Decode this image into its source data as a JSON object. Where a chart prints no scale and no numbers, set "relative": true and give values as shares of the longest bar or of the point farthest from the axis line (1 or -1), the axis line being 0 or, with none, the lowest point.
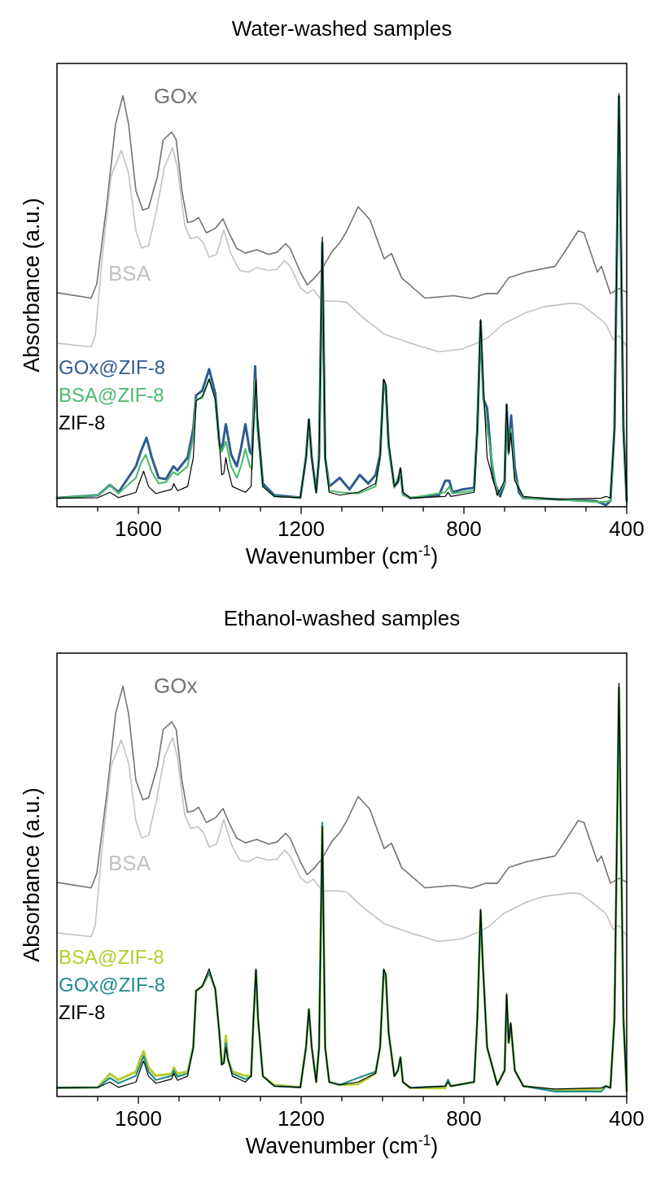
{
  "chart_data": [
    {
      "type": "line",
      "title": "Water-washed samples",
      "xlabel": "Wavenumber (cm$^{-1}$)",
      "ylabel": "Absorbance (a.u.)",
      "relative": true,
      "xlim": [
        1800,
        400
      ],
      "xticks": [
        {
          "value": 1700,
          "label": null
        },
        1600,
        {
          "value": 1500,
          "label": null
        },
        {
          "value": 1400,
          "label": null
        },
        {
          "value": 1300,
          "label": null
        },
        1200,
        {
          "value": 1100,
          "label": null
        },
        {
          "value": 1000,
          "label": null
        },
        {
          "value": 900,
          "label": null
        },
        800,
        {
          "value": 700,
          "label": null
        },
        {
          "value": 600,
          "label": null
        },
        {
          "value": 500,
          "label": null
        },
        400
      ],
      "tick_labels": "x",
      "series": [
        {
          "name": "GOx",
          "color": "#737373",
          "x": [
            1800,
            1716,
            1702,
            1677,
            1656,
            1638,
            1624,
            1606,
            1589,
            1575,
            1553,
            1539,
            1518,
            1507,
            1493,
            1479,
            1465,
            1452,
            1433,
            1411,
            1392,
            1376,
            1358,
            1337,
            1309,
            1280,
            1259,
            1238,
            1227,
            1202,
            1185,
            1167,
            1149,
            1124,
            1105,
            1088,
            1060,
            1031,
            996,
            978,
            953,
            896,
            825,
            782,
            747,
            718,
            690,
            647,
            576,
            547,
            519,
            505,
            472,
            462,
            440,
            419,
            400
          ],
          "values": [
            0.518,
            0.505,
            0.54,
            0.737,
            0.926,
            0.995,
            0.926,
            0.765,
            0.718,
            0.723,
            0.8,
            0.888,
            0.907,
            0.888,
            0.765,
            0.688,
            0.691,
            0.7,
            0.663,
            0.674,
            0.697,
            0.66,
            0.625,
            0.614,
            0.622,
            0.611,
            0.616,
            0.637,
            0.625,
            0.568,
            0.537,
            0.554,
            0.575,
            0.618,
            0.639,
            0.667,
            0.726,
            0.695,
            0.6,
            0.613,
            0.554,
            0.505,
            0.511,
            0.504,
            0.516,
            0.516,
            0.554,
            0.568,
            0.582,
            0.625,
            0.668,
            0.663,
            0.568,
            0.582,
            0.516,
            0.528,
            0.519
          ]
        },
        {
          "name": "BSA",
          "color": "#c2c2c2",
          "x": [
            1800,
            1716,
            1706,
            1688,
            1667,
            1642,
            1624,
            1606,
            1592,
            1575,
            1557,
            1536,
            1516,
            1504,
            1486,
            1472,
            1454,
            1440,
            1426,
            1408,
            1390,
            1372,
            1351,
            1330,
            1309,
            1280,
            1259,
            1241,
            1227,
            1202,
            1185,
            1170,
            1149,
            1105,
            1088,
            1046,
            996,
            932,
            861,
            804,
            768,
            739,
            704,
            647,
            604,
            533,
            512,
            476,
            451,
            433,
            419,
            400
          ],
          "values": [
            0.396,
            0.387,
            0.414,
            0.611,
            0.8,
            0.863,
            0.807,
            0.667,
            0.626,
            0.632,
            0.709,
            0.821,
            0.869,
            0.821,
            0.681,
            0.649,
            0.653,
            0.639,
            0.604,
            0.611,
            0.67,
            0.611,
            0.572,
            0.568,
            0.579,
            0.572,
            0.575,
            0.596,
            0.582,
            0.53,
            0.516,
            0.526,
            0.498,
            0.497,
            0.495,
            0.456,
            0.418,
            0.396,
            0.375,
            0.382,
            0.396,
            0.411,
            0.442,
            0.47,
            0.484,
            0.493,
            0.49,
            0.463,
            0.442,
            0.404,
            0.414,
            0.389
          ]
        },
        {
          "name": "GOx@ZIF-8",
          "color": "#2f5b8e",
          "x": [
            1800,
            1699,
            1670,
            1649,
            1606,
            1594,
            1580,
            1567,
            1550,
            1532,
            1514,
            1504,
            1479,
            1465,
            1458,
            1443,
            1426,
            1411,
            1401,
            1395,
            1385,
            1372,
            1358,
            1348,
            1337,
            1326,
            1321,
            1317,
            1313,
            1309,
            1294,
            1266,
            1202,
            1188,
            1181,
            1174,
            1163,
            1156,
            1148,
            1141,
            1131,
            1105,
            1081,
            1056,
            1035,
            1017,
            1006,
            997,
            992,
            985,
            971,
            962,
            956,
            950,
            932,
            861,
            846,
            836,
            828,
            804,
            775,
            767,
            759,
            752,
            743,
            729,
            711,
            700,
            695,
            690,
            684,
            675,
            665,
            654,
            576,
            476,
            451,
            440,
            430,
            419,
            408,
            400
          ],
          "values": [
            0.021,
            0.028,
            0.053,
            0.035,
            0.098,
            0.133,
            0.167,
            0.119,
            0.07,
            0.067,
            0.098,
            0.088,
            0.119,
            0.189,
            0.27,
            0.281,
            0.333,
            0.274,
            0.154,
            0.137,
            0.2,
            0.126,
            0.098,
            0.14,
            0.2,
            0.133,
            0.126,
            0.225,
            0.34,
            0.225,
            0.056,
            0.028,
            0.022,
            0.119,
            0.211,
            0.119,
            0.035,
            0.119,
            0.639,
            0.119,
            0.049,
            0.07,
            0.042,
            0.077,
            0.056,
            0.077,
            0.126,
            0.305,
            0.291,
            0.147,
            0.049,
            0.06,
            0.091,
            0.032,
            0.021,
            0.028,
            0.063,
            0.063,
            0.035,
            0.042,
            0.046,
            0.189,
            0.449,
            0.26,
            0.239,
            0.07,
            0.025,
            0.056,
            0.246,
            0.133,
            0.221,
            0.095,
            0.035,
            0.021,
            0.018,
            0.014,
            0.004,
            0.014,
            0.189,
            0.993,
            0.189,
            0.014
          ]
        },
        {
          "name": "BSA@ZIF-8",
          "color": "#4dbb6d",
          "x": [
            1800,
            1699,
            1670,
            1649,
            1606,
            1594,
            1582,
            1567,
            1550,
            1532,
            1514,
            1504,
            1479,
            1465,
            1458,
            1443,
            1426,
            1411,
            1401,
            1395,
            1385,
            1372,
            1358,
            1348,
            1337,
            1326,
            1321,
            1317,
            1313,
            1309,
            1294,
            1266,
            1202,
            1188,
            1181,
            1174,
            1163,
            1156,
            1148,
            1141,
            1131,
            1105,
            1060,
            1017,
            1006,
            997,
            992,
            985,
            971,
            956,
            950,
            932,
            846,
            836,
            828,
            775,
            767,
            759,
            752,
            743,
            718,
            700,
            695,
            690,
            684,
            675,
            654,
            576,
            462,
            440,
            430,
            419,
            408,
            400
          ],
          "values": [
            0.021,
            0.028,
            0.053,
            0.032,
            0.07,
            0.105,
            0.126,
            0.084,
            0.056,
            0.06,
            0.084,
            0.077,
            0.098,
            0.168,
            0.26,
            0.263,
            0.309,
            0.26,
            0.147,
            0.133,
            0.158,
            0.098,
            0.07,
            0.098,
            0.14,
            0.098,
            0.091,
            0.204,
            0.309,
            0.204,
            0.049,
            0.025,
            0.022,
            0.119,
            0.204,
            0.119,
            0.035,
            0.119,
            0.639,
            0.119,
            0.039,
            0.035,
            0.032,
            0.049,
            0.119,
            0.302,
            0.288,
            0.147,
            0.046,
            0.088,
            0.028,
            0.021,
            0.035,
            0.049,
            0.032,
            0.039,
            0.189,
            0.442,
            0.26,
            0.189,
            0.028,
            0.056,
            0.239,
            0.126,
            0.189,
            0.07,
            0.021,
            0.018,
            0.011,
            0.014,
            0.189,
            0.989,
            0.189,
            0.014
          ]
        },
        {
          "name": "ZIF-8",
          "color": "#000000",
          "x": [
            1800,
            1699,
            1670,
            1649,
            1606,
            1596,
            1587,
            1575,
            1557,
            1518,
            1513,
            1504,
            1479,
            1465,
            1458,
            1443,
            1426,
            1411,
            1401,
            1395,
            1390,
            1385,
            1380,
            1369,
            1337,
            1323,
            1317,
            1311,
            1306,
            1294,
            1266,
            1202,
            1188,
            1181,
            1174,
            1163,
            1156,
            1148,
            1141,
            1131,
            1105,
            1060,
            1017,
            1006,
            997,
            992,
            985,
            971,
            962,
            956,
            950,
            932,
            846,
            839,
            832,
            775,
            767,
            759,
            754,
            743,
            718,
            700,
            695,
            690,
            685,
            675,
            654,
            576,
            462,
            451,
            440,
            430,
            419,
            408,
            400
          ],
          "values": [
            0.021,
            0.022,
            0.035,
            0.022,
            0.035,
            0.063,
            0.086,
            0.049,
            0.032,
            0.042,
            0.056,
            0.039,
            0.049,
            0.119,
            0.256,
            0.267,
            0.309,
            0.26,
            0.154,
            0.077,
            0.081,
            0.119,
            0.091,
            0.049,
            0.035,
            0.049,
            0.189,
            0.309,
            0.189,
            0.049,
            0.025,
            0.022,
            0.119,
            0.211,
            0.119,
            0.035,
            0.119,
            0.653,
            0.119,
            0.035,
            0.028,
            0.035,
            0.056,
            0.119,
            0.309,
            0.295,
            0.154,
            0.049,
            0.063,
            0.095,
            0.035,
            0.021,
            0.025,
            0.035,
            0.025,
            0.035,
            0.189,
            0.453,
            0.33,
            0.119,
            0.028,
            0.063,
            0.249,
            0.13,
            0.179,
            0.063,
            0.025,
            0.018,
            0.021,
            0.025,
            0.021,
            0.189,
            1.0,
            0.189,
            0.014
          ]
        }
      ]
    },
    {
      "type": "line",
      "title": "Ethanol-washed samples",
      "xlabel": "Wavenumber (cm$^{-1}$)",
      "ylabel": "Absorbance (a.u.)",
      "relative": true,
      "xlim": [
        1800,
        400
      ],
      "xticks": [
        {
          "value": 1700,
          "label": null
        },
        1600,
        {
          "value": 1500,
          "label": null
        },
        {
          "value": 1400,
          "label": null
        },
        {
          "value": 1300,
          "label": null
        },
        1200,
        {
          "value": 1100,
          "label": null
        },
        {
          "value": 1000,
          "label": null
        },
        {
          "value": 900,
          "label": null
        },
        800,
        {
          "value": 700,
          "label": null
        },
        {
          "value": 600,
          "label": null
        },
        {
          "value": 500,
          "label": null
        },
        400
      ],
      "tick_labels": "x",
      "series": [
        {
          "name": "GOx",
          "color": "#737373",
          "x": [
            1800,
            1716,
            1702,
            1677,
            1656,
            1638,
            1624,
            1606,
            1589,
            1575,
            1553,
            1539,
            1518,
            1507,
            1493,
            1479,
            1465,
            1452,
            1433,
            1411,
            1392,
            1376,
            1358,
            1337,
            1309,
            1280,
            1259,
            1238,
            1227,
            1202,
            1185,
            1167,
            1149,
            1124,
            1105,
            1088,
            1060,
            1031,
            996,
            978,
            953,
            896,
            825,
            782,
            747,
            718,
            690,
            647,
            576,
            547,
            519,
            505,
            472,
            462,
            440,
            419,
            400
          ],
          "values": [
            0.518,
            0.505,
            0.54,
            0.737,
            0.926,
            0.993,
            0.926,
            0.765,
            0.718,
            0.723,
            0.8,
            0.888,
            0.907,
            0.888,
            0.765,
            0.688,
            0.691,
            0.7,
            0.663,
            0.674,
            0.697,
            0.66,
            0.625,
            0.614,
            0.622,
            0.611,
            0.616,
            0.637,
            0.625,
            0.568,
            0.537,
            0.554,
            0.575,
            0.618,
            0.639,
            0.667,
            0.726,
            0.695,
            0.6,
            0.613,
            0.554,
            0.505,
            0.511,
            0.504,
            0.516,
            0.516,
            0.554,
            0.568,
            0.582,
            0.625,
            0.668,
            0.663,
            0.568,
            0.582,
            0.516,
            0.528,
            0.519
          ]
        },
        {
          "name": "BSA",
          "color": "#c2c2c2",
          "x": [
            1800,
            1716,
            1706,
            1688,
            1667,
            1642,
            1624,
            1606,
            1592,
            1575,
            1557,
            1536,
            1516,
            1504,
            1486,
            1472,
            1454,
            1440,
            1426,
            1408,
            1390,
            1372,
            1351,
            1330,
            1309,
            1280,
            1259,
            1241,
            1227,
            1202,
            1185,
            1170,
            1149,
            1105,
            1088,
            1046,
            996,
            932,
            861,
            804,
            768,
            739,
            704,
            647,
            604,
            533,
            512,
            476,
            451,
            433,
            419,
            400
          ],
          "values": [
            0.396,
            0.387,
            0.414,
            0.611,
            0.8,
            0.863,
            0.807,
            0.667,
            0.626,
            0.632,
            0.709,
            0.821,
            0.869,
            0.821,
            0.681,
            0.649,
            0.653,
            0.639,
            0.604,
            0.611,
            0.67,
            0.611,
            0.572,
            0.568,
            0.579,
            0.572,
            0.575,
            0.596,
            0.582,
            0.53,
            0.516,
            0.526,
            0.498,
            0.497,
            0.495,
            0.456,
            0.418,
            0.396,
            0.375,
            0.382,
            0.396,
            0.411,
            0.442,
            0.47,
            0.484,
            0.493,
            0.49,
            0.463,
            0.442,
            0.404,
            0.414,
            0.389
          ]
        },
        {
          "name": "BSA@ZIF-8",
          "color": "#b6cc2f",
          "x": [
            1800,
            1699,
            1670,
            1649,
            1606,
            1596,
            1587,
            1575,
            1557,
            1518,
            1513,
            1504,
            1479,
            1465,
            1458,
            1443,
            1426,
            1411,
            1401,
            1395,
            1390,
            1385,
            1380,
            1369,
            1337,
            1323,
            1317,
            1311,
            1306,
            1294,
            1266,
            1202,
            1188,
            1181,
            1174,
            1163,
            1156,
            1148,
            1141,
            1131,
            1105,
            1060,
            1017,
            1006,
            997,
            992,
            985,
            971,
            962,
            956,
            950,
            932,
            846,
            839,
            832,
            775,
            767,
            759,
            754,
            743,
            718,
            700,
            695,
            690,
            685,
            675,
            654,
            576,
            462,
            451,
            440,
            430,
            419,
            408,
            400
          ],
          "values": [
            0.021,
            0.022,
            0.055,
            0.04,
            0.06,
            0.09,
            0.109,
            0.07,
            0.05,
            0.055,
            0.07,
            0.055,
            0.06,
            0.119,
            0.256,
            0.267,
            0.3,
            0.26,
            0.154,
            0.077,
            0.081,
            0.147,
            0.091,
            0.06,
            0.05,
            0.049,
            0.189,
            0.305,
            0.189,
            0.049,
            0.028,
            0.022,
            0.119,
            0.211,
            0.119,
            0.035,
            0.119,
            0.653,
            0.119,
            0.035,
            0.028,
            0.03,
            0.056,
            0.119,
            0.305,
            0.295,
            0.154,
            0.049,
            0.063,
            0.095,
            0.035,
            0.021,
            0.02,
            0.04,
            0.025,
            0.035,
            0.189,
            0.45,
            0.33,
            0.119,
            0.028,
            0.063,
            0.245,
            0.13,
            0.175,
            0.063,
            0.025,
            0.015,
            0.018,
            0.025,
            0.021,
            0.189,
            0.99,
            0.189,
            0.014
          ]
        },
        {
          "name": "GOx@ZIF-8",
          "color": "#1e8c8c",
          "x": [
            1800,
            1699,
            1670,
            1649,
            1606,
            1596,
            1587,
            1575,
            1557,
            1518,
            1513,
            1504,
            1479,
            1465,
            1458,
            1443,
            1426,
            1411,
            1401,
            1395,
            1390,
            1385,
            1380,
            1369,
            1337,
            1323,
            1317,
            1311,
            1306,
            1294,
            1266,
            1202,
            1188,
            1181,
            1174,
            1163,
            1156,
            1148,
            1141,
            1131,
            1105,
            1060,
            1017,
            1006,
            997,
            992,
            985,
            971,
            962,
            956,
            950,
            932,
            846,
            839,
            832,
            775,
            767,
            759,
            754,
            743,
            718,
            700,
            695,
            690,
            685,
            675,
            654,
            576,
            462,
            451,
            440,
            430,
            419,
            408,
            400
          ],
          "values": [
            0.021,
            0.022,
            0.045,
            0.032,
            0.05,
            0.075,
            0.098,
            0.06,
            0.04,
            0.05,
            0.063,
            0.048,
            0.055,
            0.119,
            0.256,
            0.267,
            0.3,
            0.26,
            0.154,
            0.077,
            0.081,
            0.13,
            0.091,
            0.055,
            0.042,
            0.049,
            0.189,
            0.305,
            0.189,
            0.049,
            0.025,
            0.022,
            0.119,
            0.211,
            0.119,
            0.035,
            0.119,
            0.663,
            0.119,
            0.035,
            0.028,
            0.045,
            0.06,
            0.119,
            0.305,
            0.295,
            0.154,
            0.049,
            0.063,
            0.095,
            0.035,
            0.021,
            0.025,
            0.04,
            0.025,
            0.035,
            0.189,
            0.45,
            0.33,
            0.119,
            0.028,
            0.063,
            0.245,
            0.13,
            0.175,
            0.063,
            0.025,
            0.012,
            0.012,
            0.025,
            0.021,
            0.189,
            0.99,
            0.189,
            0.014
          ]
        },
        {
          "name": "ZIF-8",
          "color": "#000000",
          "x": [
            1800,
            1699,
            1670,
            1649,
            1606,
            1596,
            1587,
            1575,
            1557,
            1518,
            1513,
            1504,
            1479,
            1465,
            1458,
            1443,
            1426,
            1411,
            1401,
            1395,
            1390,
            1385,
            1380,
            1369,
            1337,
            1323,
            1317,
            1311,
            1306,
            1294,
            1266,
            1202,
            1188,
            1181,
            1174,
            1163,
            1156,
            1148,
            1141,
            1131,
            1105,
            1060,
            1017,
            1006,
            997,
            992,
            985,
            971,
            962,
            956,
            950,
            932,
            846,
            839,
            832,
            775,
            767,
            759,
            754,
            743,
            718,
            700,
            695,
            690,
            685,
            675,
            654,
            576,
            462,
            451,
            440,
            430,
            419,
            408,
            400
          ],
          "values": [
            0.021,
            0.022,
            0.035,
            0.022,
            0.035,
            0.063,
            0.086,
            0.049,
            0.032,
            0.042,
            0.056,
            0.039,
            0.049,
            0.119,
            0.256,
            0.267,
            0.309,
            0.26,
            0.154,
            0.077,
            0.081,
            0.119,
            0.091,
            0.049,
            0.035,
            0.049,
            0.189,
            0.309,
            0.189,
            0.049,
            0.025,
            0.022,
            0.119,
            0.211,
            0.119,
            0.035,
            0.119,
            0.653,
            0.119,
            0.035,
            0.028,
            0.035,
            0.056,
            0.119,
            0.309,
            0.295,
            0.154,
            0.049,
            0.063,
            0.095,
            0.035,
            0.021,
            0.025,
            0.035,
            0.025,
            0.035,
            0.189,
            0.453,
            0.33,
            0.119,
            0.028,
            0.063,
            0.249,
            0.13,
            0.179,
            0.063,
            0.025,
            0.018,
            0.021,
            0.025,
            0.021,
            0.189,
            1.0,
            0.189,
            0.014
          ]
        }
      ]
    }
  ]
}
